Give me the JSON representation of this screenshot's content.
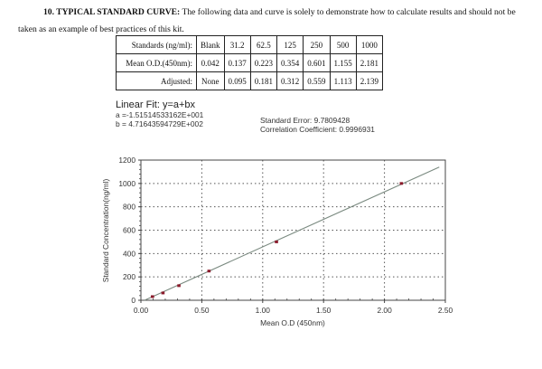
{
  "heading": {
    "number_title": "10. TYPICAL STANDARD CURVE:",
    "text_line1": " The following data and curve is solely to demonstrate how to calculate results and should not be",
    "text_line2": "taken as an example of best practices of this kit."
  },
  "table": {
    "rows": [
      {
        "label": "Standards (ng/ml):",
        "cells": [
          "Blank",
          "31.2",
          "62.5",
          "125",
          "250",
          "500",
          "1000"
        ]
      },
      {
        "label": "Mean O.D.(450nm):",
        "cells": [
          "0.042",
          "0.137",
          "0.223",
          "0.354",
          "0.601",
          "1.155",
          "2.181"
        ]
      },
      {
        "label": "Adjusted:",
        "cells": [
          "None",
          "0.095",
          "0.181",
          "0.312",
          "0.559",
          "1.113",
          "2.139"
        ]
      }
    ]
  },
  "fit": {
    "title": "Linear Fit: y=a+bx",
    "a": "a =-1.51514533162E+001",
    "b": "b = 4.71643594729E+002",
    "standard_error": "Standard Error: 9.7809428",
    "correlation": "Correlation Coefficient: 0.9996931"
  },
  "chart_data": {
    "type": "scatter",
    "title": "",
    "xlabel": "Mean O.D (450nm)",
    "ylabel": "Standard Concentration(ng/ml)",
    "xlim": [
      0,
      2.5
    ],
    "ylim": [
      0,
      1200
    ],
    "x_ticks": [
      "0.00",
      "0.50",
      "1.00",
      "1.50",
      "2.00",
      "2.50"
    ],
    "y_ticks": [
      "0",
      "200",
      "400",
      "600",
      "800",
      "1000",
      "1200"
    ],
    "grid": true,
    "series": [
      {
        "name": "Standards",
        "x": [
          0.095,
          0.181,
          0.312,
          0.559,
          1.113,
          2.139
        ],
        "y": [
          31.2,
          62.5,
          125,
          250,
          500,
          1000
        ]
      }
    ],
    "fit_line": {
      "a": -15.1514533162,
      "b": 471.643594729,
      "x_range": [
        0.03,
        2.45
      ]
    },
    "colors": {
      "marker": "#8b1a2b",
      "line": "#7a8a80",
      "grid": "#555555",
      "frame": "#444444"
    }
  }
}
